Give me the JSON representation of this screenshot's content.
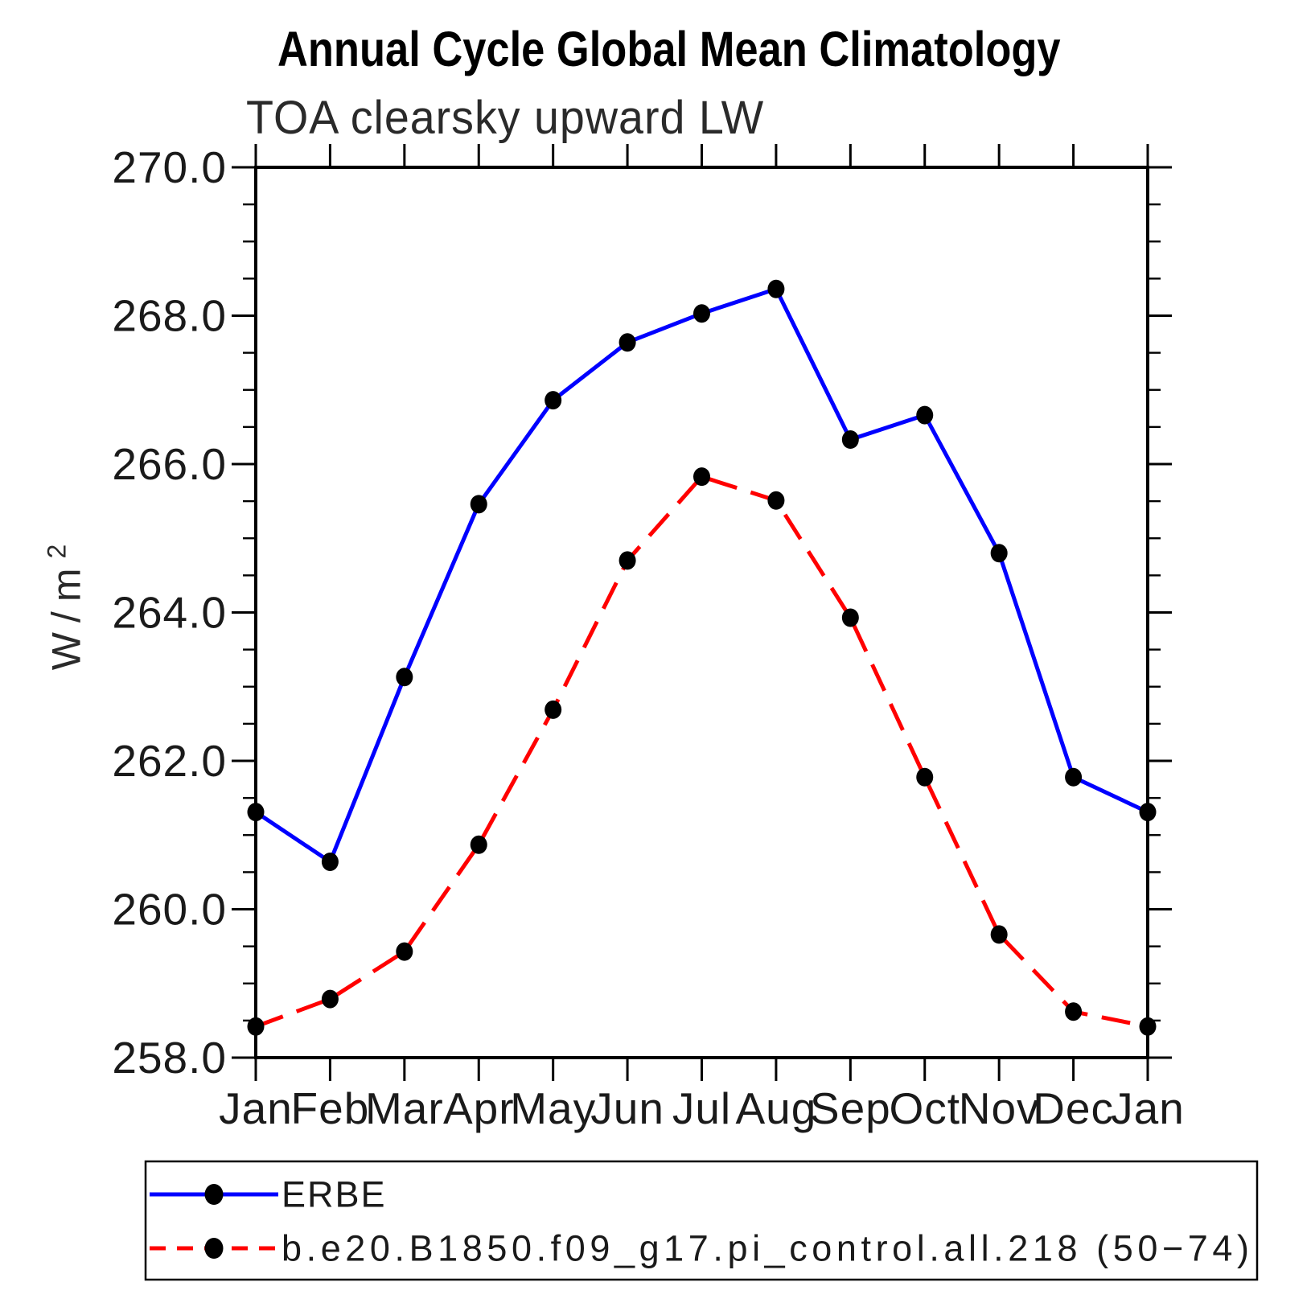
{
  "page": {
    "title": "Annual Cycle Global Mean Climatology",
    "subtitle": "TOA clearsky upward LW",
    "ylabel_base": "W/m",
    "ylabel_exp": "2"
  },
  "chart_data": {
    "type": "line",
    "title": "Annual Cycle Global Mean Climatology",
    "subtitle": "TOA clearsky upward LW",
    "xlabel": "",
    "ylabel": "W/m2",
    "categories": [
      "Jan",
      "Feb",
      "Mar",
      "Apr",
      "May",
      "Jun",
      "Jul",
      "Aug",
      "Sep",
      "Oct",
      "Nov",
      "Dec",
      "Jan"
    ],
    "ylim": [
      258.0,
      270.0
    ],
    "ytick_step": 2.0,
    "ytick_labels": [
      "258.0",
      "260.0",
      "262.0",
      "264.0",
      "266.0",
      "268.0",
      "270.0"
    ],
    "yminor_step": 0.5,
    "grid": false,
    "legend_position": "bottom",
    "series": [
      {
        "name": "ERBE",
        "color": "#0000FF",
        "style": "solid",
        "marker": "circle",
        "marker_color": "#000000",
        "values": [
          261.31,
          260.64,
          263.13,
          265.46,
          266.86,
          267.64,
          268.03,
          268.36,
          266.33,
          266.66,
          264.8,
          261.78,
          261.31
        ]
      },
      {
        "name": "b.e20.B1850.f09_g17.pi_control.all.218 (50−74)",
        "color": "#FF0000",
        "style": "dashed",
        "marker": "circle",
        "marker_color": "#000000",
        "values": [
          258.42,
          258.79,
          259.43,
          260.87,
          262.69,
          264.7,
          265.83,
          265.51,
          263.93,
          261.78,
          259.66,
          258.62,
          258.42
        ]
      }
    ]
  }
}
